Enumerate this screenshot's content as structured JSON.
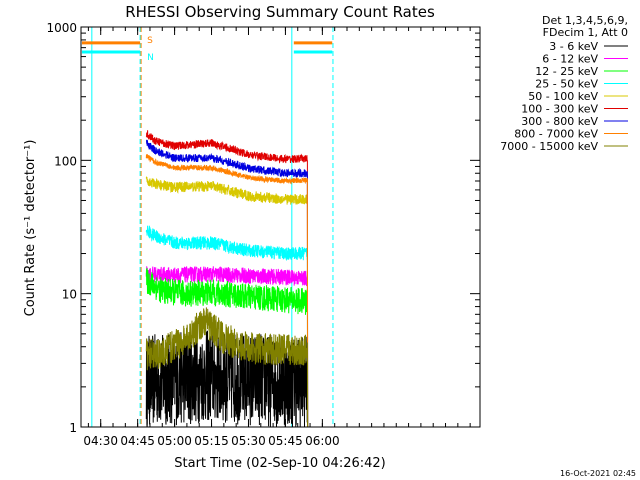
{
  "chart_data": {
    "type": "line",
    "title": "RHESSI Observing Summary Count Rates",
    "xlabel": "Start Time (02-Sep-10 04:26:42)",
    "ylabel": "Count Rate (s⁻¹ detector⁻¹)",
    "yscale": "log",
    "ylim": [
      1,
      1000
    ],
    "xlim_min": [
      22,
      184
    ],
    "x_ticks": [
      {
        "min": 30,
        "label": "04:30"
      },
      {
        "min": 45,
        "label": "04:45"
      },
      {
        "min": 60,
        "label": "05:00"
      },
      {
        "min": 75,
        "label": "05:15"
      },
      {
        "min": 90,
        "label": "05:30"
      },
      {
        "min": 105,
        "label": "05:45"
      },
      {
        "min": 120,
        "label": "06:00"
      }
    ],
    "y_ticks": [
      {
        "value": 1,
        "label": "1"
      },
      {
        "value": 10,
        "label": "10"
      },
      {
        "value": 100,
        "label": "100"
      },
      {
        "value": 1000,
        "label": "1000"
      }
    ],
    "legend_header": [
      "Det 1,3,4,5,6,9,",
      "FDecim 1, Att 0"
    ],
    "legend_placement": "right",
    "series": [
      {
        "name": "3 - 6 keV",
        "color": "#000000",
        "noise": 0.35,
        "x": [
          48.5,
          60,
          75,
          90,
          105,
          114
        ],
        "y": [
          2.2,
          2.3,
          2.4,
          2.3,
          2.2,
          2.2
        ]
      },
      {
        "name": "6 - 12 keV",
        "color": "#ff00ff",
        "noise": 0.06,
        "x": [
          48.5,
          60,
          75,
          90,
          105,
          114
        ],
        "y": [
          14.0,
          13.8,
          14.0,
          13.6,
          13.3,
          13.0
        ]
      },
      {
        "name": "12 - 25 keV",
        "color": "#00ff00",
        "noise": 0.1,
        "x": [
          48.5,
          55,
          65,
          75,
          90,
          105,
          114
        ],
        "y": [
          12.5,
          10.5,
          10.0,
          10.2,
          9.5,
          9.0,
          8.7
        ]
      },
      {
        "name": "25 - 50 keV",
        "color": "#00ffff",
        "noise": 0.05,
        "x": [
          48.5,
          52,
          60,
          75,
          90,
          105,
          114
        ],
        "y": [
          30,
          27,
          24,
          24,
          21,
          20,
          20
        ]
      },
      {
        "name": "50 - 100 keV",
        "color": "#d8c800",
        "noise": 0.04,
        "x": [
          48.5,
          52,
          60,
          75,
          90,
          105,
          114
        ],
        "y": [
          72,
          66,
          63,
          64,
          54,
          51,
          51
        ]
      },
      {
        "name": "100 - 300 keV",
        "color": "#e00000",
        "noise": 0.03,
        "x": [
          48.5,
          52,
          60,
          75,
          90,
          105,
          114
        ],
        "y": [
          160,
          140,
          128,
          135,
          110,
          102,
          103
        ]
      },
      {
        "name": "300 - 800 keV",
        "color": "#0000e0",
        "noise": 0.03,
        "x": [
          48.5,
          52,
          60,
          75,
          90,
          105,
          114
        ],
        "y": [
          135,
          118,
          104,
          104,
          87,
          80,
          80
        ]
      },
      {
        "name": "800 - 7000 keV",
        "color": "#ff8000",
        "noise": 0.02,
        "x": [
          48.5,
          52,
          60,
          75,
          90,
          105,
          114
        ],
        "y": [
          108,
          97,
          88,
          88,
          74,
          70,
          71
        ]
      },
      {
        "name": "7000 - 15000 keV",
        "color": "#808000",
        "noise": 0.12,
        "x": [
          48.5,
          55,
          65,
          72,
          80,
          90,
          105,
          114
        ],
        "y": [
          3.5,
          3.6,
          4.6,
          6.2,
          4.6,
          3.9,
          3.8,
          3.8
        ]
      }
    ],
    "flags": [
      {
        "label": "S",
        "color": "#ff8000",
        "y": 760,
        "x_ranges": [
          [
            22,
            46
          ],
          [
            108,
            124
          ]
        ]
      },
      {
        "label": "N",
        "color": "#00ffff",
        "y": 650,
        "x_ranges": [
          [
            22,
            46
          ],
          [
            108,
            124
          ]
        ]
      }
    ],
    "markers": [
      {
        "x": 26.4,
        "color": "#00ffff",
        "dashed": false
      },
      {
        "x": 46.0,
        "color": "#00ffff",
        "dashed": true
      },
      {
        "x": 46.4,
        "color": "#ff8000",
        "dashed": true
      },
      {
        "x": 107.6,
        "color": "#00ffff",
        "dashed": false
      },
      {
        "x": 124.3,
        "color": "#00ffff",
        "dashed": true
      }
    ],
    "end_drop_x": 114
  },
  "footer": {
    "timestamp": "16-Oct-2021 02:45"
  }
}
